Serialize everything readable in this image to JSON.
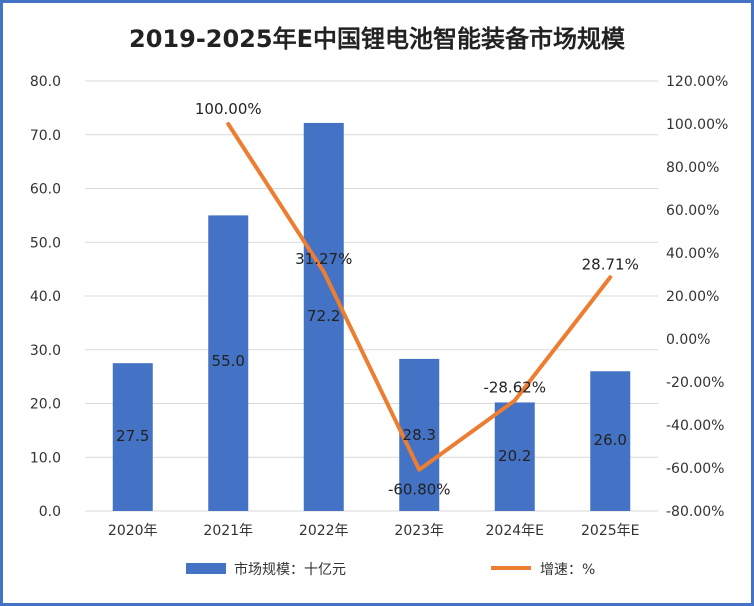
{
  "chart_data": {
    "type": "bar",
    "title": "2019-2025年E中国锂电池智能装备市场规模",
    "categories": [
      "2020年",
      "2021年",
      "2022年",
      "2023年",
      "2024年E",
      "2025年E"
    ],
    "series": [
      {
        "name": "市场规模：十亿元",
        "type": "bar",
        "axis": "left",
        "values": [
          27.5,
          55.0,
          72.2,
          28.3,
          20.2,
          26.0
        ],
        "labels": [
          "27.5",
          "55.0",
          "72.2",
          "28.3",
          "20.2",
          "26.0"
        ],
        "color": "#4472C4"
      },
      {
        "name": "增速：%",
        "type": "line",
        "axis": "right",
        "values": [
          null,
          100.0,
          31.27,
          -60.8,
          -28.62,
          28.71
        ],
        "labels": [
          null,
          "100.00%",
          "31.27%",
          "-60.80%",
          "-28.62%",
          "28.71%"
        ],
        "color": "#ED7D31"
      }
    ],
    "ylim": [
      0,
      80
    ],
    "y_ticks": [
      "0.0",
      "10.0",
      "20.0",
      "30.0",
      "40.0",
      "50.0",
      "60.0",
      "70.0",
      "80.0"
    ],
    "y2lim": [
      -80,
      120
    ],
    "y2_ticks": [
      "-80.00%",
      "-60.00%",
      "-40.00%",
      "-20.00%",
      "0.00%",
      "20.00%",
      "40.00%",
      "60.00%",
      "80.00%",
      "100.00%",
      "120.00%"
    ],
    "grid": true,
    "legend_position": "bottom"
  }
}
